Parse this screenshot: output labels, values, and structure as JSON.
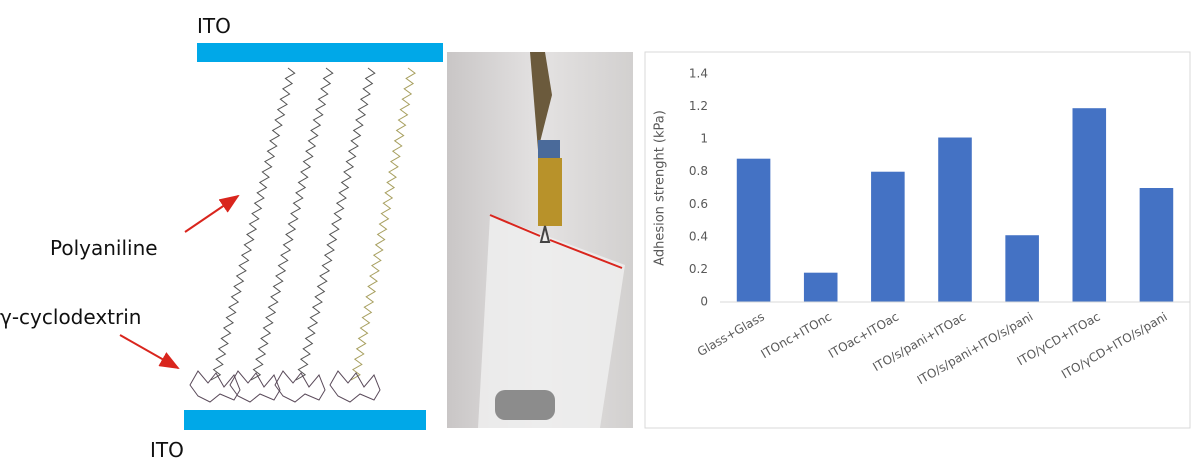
{
  "diagram": {
    "top_electrode": "ITO",
    "bottom_electrode": "ITO",
    "polymer_label": "Polyaniline",
    "cyclodextrin_label": "γ-cyclodextrin"
  },
  "chart_data": {
    "type": "bar",
    "y_label": "Adhesion strenght (kPa)",
    "categories": [
      "Glass+Glass",
      "ITOnc+ITOnc",
      "ITOac+ITOac",
      "ITO/s/pani+ITOac",
      "ITO/s/pani+ITO/s/pani",
      "ITO/γCD+ITOac",
      "ITO/γCD+ITO/s/pani"
    ],
    "values": [
      0.88,
      0.18,
      0.8,
      1.01,
      0.41,
      1.19,
      0.7
    ],
    "color": "#4472c4",
    "ylim": [
      0,
      1.4
    ],
    "yticks": [
      0,
      0.2,
      0.4,
      0.6,
      0.8,
      1,
      1.2,
      1.4
    ],
    "grid": false
  }
}
